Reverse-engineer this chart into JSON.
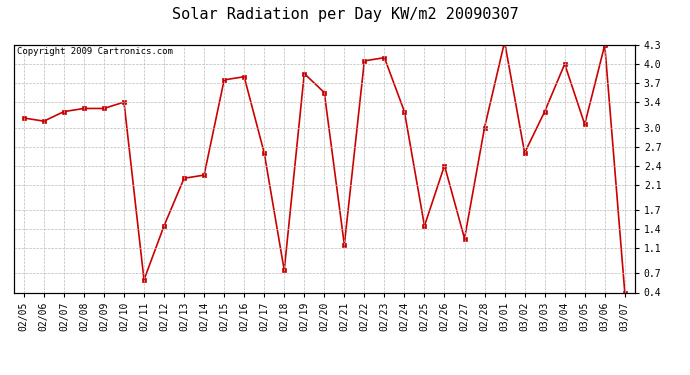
{
  "title": "Solar Radiation per Day KW/m2 20090307",
  "copyright": "Copyright 2009 Cartronics.com",
  "dates": [
    "02/05",
    "02/06",
    "02/07",
    "02/08",
    "02/09",
    "02/10",
    "02/11",
    "02/12",
    "02/13",
    "02/14",
    "02/15",
    "02/16",
    "02/17",
    "02/18",
    "02/19",
    "02/20",
    "02/21",
    "02/22",
    "02/23",
    "02/24",
    "02/25",
    "02/26",
    "02/27",
    "02/28",
    "03/01",
    "03/02",
    "03/03",
    "03/04",
    "03/05",
    "03/06",
    "03/07"
  ],
  "values": [
    3.15,
    3.1,
    3.25,
    3.3,
    3.3,
    3.4,
    0.6,
    1.45,
    2.2,
    2.25,
    3.75,
    3.8,
    2.6,
    0.75,
    3.85,
    3.55,
    1.15,
    4.05,
    4.1,
    3.25,
    1.45,
    2.4,
    1.25,
    3.0,
    4.35,
    2.6,
    3.25,
    4.0,
    3.05,
    4.3,
    0.4
  ],
  "line_color": "#cc0000",
  "marker": "s",
  "markersize": 2.5,
  "linewidth": 1.2,
  "ylim_min": 0.4,
  "ylim_max": 4.3,
  "yticks": [
    0.4,
    0.7,
    1.1,
    1.4,
    1.7,
    2.1,
    2.4,
    2.7,
    3.0,
    3.4,
    3.7,
    4.0,
    4.3
  ],
  "bg_color": "#ffffff",
  "grid_color": "#bbbbbb",
  "title_fontsize": 11,
  "copyright_fontsize": 6.5,
  "tick_fontsize": 7
}
